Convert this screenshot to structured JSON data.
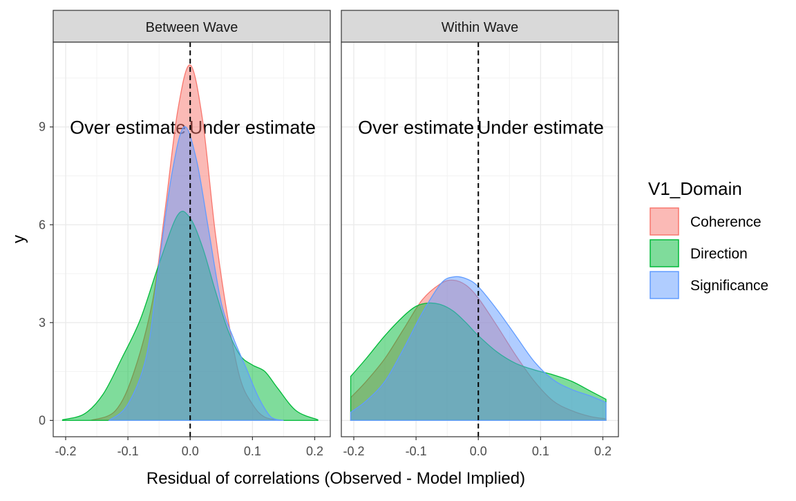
{
  "chart_data": {
    "type": "area",
    "ylabel": "y",
    "xlabel": "Residual of correlations (Observed - Model Implied)",
    "x_ticks": [
      -0.2,
      -0.1,
      0.0,
      0.1,
      0.2
    ],
    "x_tick_labels": [
      "-0.2",
      "-0.1",
      "0.0",
      "0.1",
      "0.2"
    ],
    "y_ticks": [
      0,
      3,
      6,
      9
    ],
    "y_tick_labels": [
      "0",
      "3",
      "6",
      "9"
    ],
    "xlim": [
      -0.22,
      0.225
    ],
    "ylim": [
      -0.5,
      11.6
    ],
    "reference_line_x": 0,
    "grid": true,
    "legend": {
      "title": "V1_Domain",
      "position": "right",
      "entries": [
        {
          "name": "Coherence",
          "fill": "#F8766D",
          "stroke": "#F8766D"
        },
        {
          "name": "Direction",
          "fill": "#00BA38",
          "stroke": "#00BA38"
        },
        {
          "name": "Significance",
          "fill": "#619CFF",
          "stroke": "#619CFF"
        }
      ]
    },
    "panels": [
      {
        "strip": "Between Wave",
        "annotations": [
          {
            "text": "Over estimate",
            "x": -0.1,
            "y": 9
          },
          {
            "text": "Under estimate",
            "x": 0.1,
            "y": 9
          }
        ],
        "series": [
          {
            "name": "Coherence",
            "x": [
              -0.16,
              -0.12,
              -0.09,
              -0.06,
              -0.04,
              -0.02,
              0.0,
              0.02,
              0.04,
              0.06,
              0.08,
              0.1,
              0.12,
              0.15
            ],
            "y": [
              0,
              0.3,
              1.5,
              3.7,
              6.5,
              9.5,
              10.9,
              9.2,
              5.8,
              3.2,
              1.3,
              0.5,
              0.1,
              0
            ]
          },
          {
            "name": "Direction",
            "x": [
              -0.205,
              -0.17,
              -0.14,
              -0.11,
              -0.08,
              -0.05,
              -0.02,
              0.0,
              0.02,
              0.04,
              0.06,
              0.08,
              0.1,
              0.12,
              0.14,
              0.17,
              0.205
            ],
            "y": [
              0.02,
              0.2,
              0.8,
              1.9,
              3.1,
              4.8,
              6.3,
              6.2,
              5.3,
              4.0,
              2.8,
              2.0,
              1.7,
              1.5,
              1.0,
              0.3,
              0.02
            ]
          },
          {
            "name": "Significance",
            "x": [
              -0.13,
              -0.1,
              -0.07,
              -0.05,
              -0.03,
              -0.01,
              0.01,
              0.03,
              0.05,
              0.07,
              0.09,
              0.11,
              0.13,
              0.15
            ],
            "y": [
              0,
              0.5,
              2.0,
              4.8,
              7.5,
              9.0,
              8.0,
              5.8,
              3.6,
              2.5,
              1.6,
              0.7,
              0.1,
              0
            ]
          }
        ]
      },
      {
        "strip": "Within Wave",
        "annotations": [
          {
            "text": "Over estimate",
            "x": -0.1,
            "y": 9
          },
          {
            "text": "Under estimate",
            "x": 0.1,
            "y": 9
          }
        ],
        "series": [
          {
            "name": "Coherence",
            "x": [
              -0.205,
              -0.18,
              -0.15,
              -0.12,
              -0.09,
              -0.06,
              -0.04,
              -0.02,
              0.0,
              0.03,
              0.06,
              0.09,
              0.12,
              0.15,
              0.18,
              0.205
            ],
            "y": [
              0.7,
              1.2,
              1.9,
              2.8,
              3.7,
              4.2,
              4.3,
              4.15,
              3.75,
              2.9,
              2.0,
              1.2,
              0.6,
              0.3,
              0.12,
              0.05
            ]
          },
          {
            "name": "Direction",
            "x": [
              -0.205,
              -0.18,
              -0.15,
              -0.12,
              -0.1,
              -0.08,
              -0.06,
              -0.04,
              -0.02,
              0.0,
              0.03,
              0.06,
              0.09,
              0.12,
              0.15,
              0.18,
              0.205
            ],
            "y": [
              1.35,
              1.9,
              2.6,
              3.2,
              3.5,
              3.6,
              3.55,
              3.35,
              3.0,
              2.6,
              2.1,
              1.75,
              1.55,
              1.4,
              1.2,
              0.9,
              0.65
            ]
          },
          {
            "name": "Significance",
            "x": [
              -0.205,
              -0.18,
              -0.15,
              -0.12,
              -0.09,
              -0.06,
              -0.04,
              -0.02,
              0.0,
              0.03,
              0.06,
              0.09,
              0.12,
              0.15,
              0.18,
              0.205
            ],
            "y": [
              0.25,
              0.6,
              1.2,
              2.2,
              3.3,
              4.2,
              4.4,
              4.35,
              4.1,
              3.4,
              2.6,
              1.8,
              1.25,
              0.95,
              0.75,
              0.55
            ]
          }
        ]
      }
    ]
  }
}
